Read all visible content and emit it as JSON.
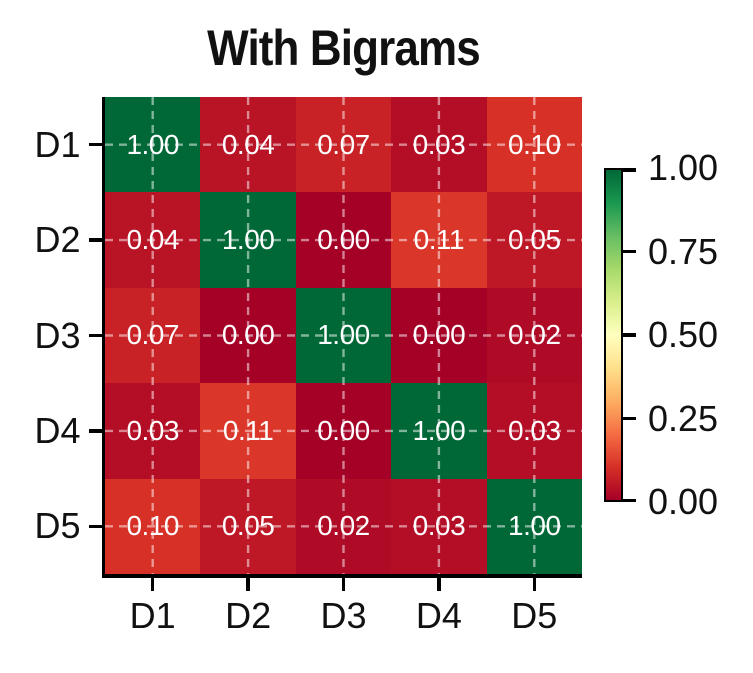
{
  "title": "With Bigrams",
  "chart_data": {
    "type": "heatmap",
    "title": "With Bigrams",
    "x_categories": [
      "D1",
      "D2",
      "D3",
      "D4",
      "D5"
    ],
    "y_categories": [
      "D1",
      "D2",
      "D3",
      "D4",
      "D5"
    ],
    "values": [
      [
        1.0,
        0.04,
        0.07,
        0.03,
        0.1
      ],
      [
        0.04,
        1.0,
        0.0,
        0.11,
        0.05
      ],
      [
        0.07,
        0.0,
        1.0,
        0.0,
        0.02
      ],
      [
        0.03,
        0.11,
        0.0,
        1.0,
        0.03
      ],
      [
        0.1,
        0.05,
        0.02,
        0.03,
        1.0
      ]
    ],
    "value_decimals": 2,
    "colormap": "RdYlGn",
    "vmin": 0,
    "vmax": 1,
    "colorbar_position": "right",
    "colorbar_tick_labels": [
      "1.00",
      "0.75",
      "0.50",
      "0.25",
      "0.00"
    ],
    "grid": "dashed lines through cell centers",
    "annotation_color": "#ffffff"
  },
  "colors": {
    "background": "#ffffff",
    "spine": "#000000",
    "label_text": "#111111",
    "grid_line": "rgba(255,255,255,0.5)",
    "cmap_stops": [
      "#a50026",
      "#d73027",
      "#f46d43",
      "#fdae61",
      "#fee08b",
      "#ffffbf",
      "#d9ef8b",
      "#a6d96a",
      "#66bd63",
      "#1a9850",
      "#006837"
    ]
  }
}
